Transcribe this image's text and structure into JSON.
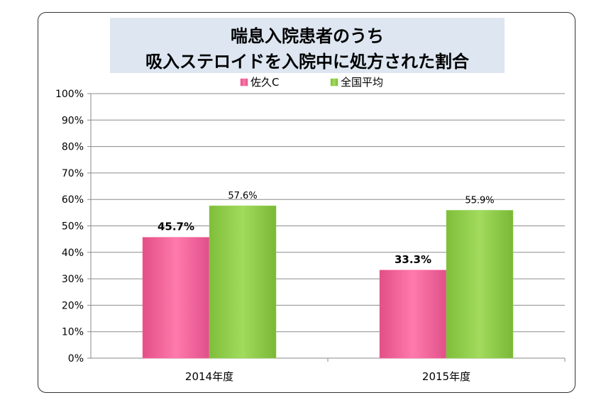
{
  "chart_data": {
    "type": "bar",
    "title_lines": [
      "喘息入院患者のうち",
      "吸入ステロイドを入院中に処方された割合"
    ],
    "categories": [
      "2014年度",
      "2015年度"
    ],
    "series": [
      {
        "name": "佐久C",
        "values": [
          45.7,
          33.3
        ],
        "labels": [
          "45.7%",
          "33.3%"
        ],
        "color": "#ff6fa3",
        "label_bold": true
      },
      {
        "name": "全国平均",
        "values": [
          57.6,
          55.9
        ],
        "labels": [
          "57.6%",
          "55.9%"
        ],
        "color": "#92d050",
        "label_bold": false
      }
    ],
    "ylim": [
      0,
      100
    ],
    "yticks": [
      "0%",
      "10%",
      "20%",
      "30%",
      "40%",
      "50%",
      "60%",
      "70%",
      "80%",
      "90%",
      "100%"
    ],
    "legend_position": "top",
    "grid": true
  }
}
